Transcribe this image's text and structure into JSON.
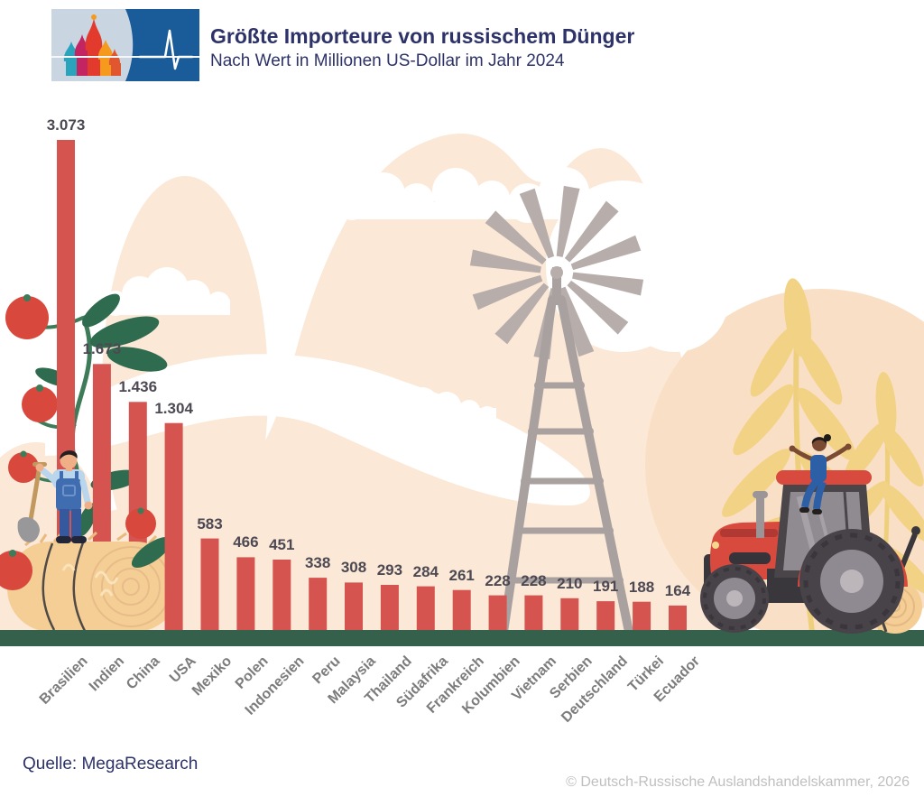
{
  "header": {
    "title": "Größte Importeure von russischem Dünger",
    "subtitle": "Nach Wert in Millionen US-Dollar im Jahr 2024"
  },
  "chart_data": {
    "type": "bar",
    "title": "Größte Importeure von russischem Dünger",
    "subtitle": "Nach Wert in Millionen US-Dollar im Jahr 2024",
    "unit": "Millionen US-Dollar",
    "year": "2024",
    "categories": [
      "Brasilien",
      "Indien",
      "China",
      "USA",
      "Mexiko",
      "Polen",
      "Indonesien",
      "Peru",
      "Malaysia",
      "Thailand",
      "Südafrika",
      "Frankreich",
      "Kolumbien",
      "Vietnam",
      "Serbien",
      "Deutschland",
      "Türkei",
      "Ecuador"
    ],
    "values": [
      3073,
      1673,
      1436,
      1304,
      583,
      466,
      451,
      338,
      308,
      293,
      284,
      261,
      228,
      228,
      210,
      191,
      188,
      164
    ],
    "value_labels": [
      "3.073",
      "1.673",
      "1.436",
      "1.304",
      "583",
      "466",
      "451",
      "338",
      "308",
      "293",
      "284",
      "261",
      "228",
      "228",
      "210",
      "191",
      "188",
      "164"
    ],
    "xlabel": "",
    "ylabel": "",
    "ylim": [
      0,
      3073
    ],
    "grid": false,
    "legend": "none",
    "bar_color": "#D65450",
    "baseline_color": "#35614C"
  },
  "footer": {
    "source": "Quelle: MegaResearch",
    "copyright": "© Deutsch-Russische Auslandshandelskammer, 2026"
  },
  "colors": {
    "accent_red": "#D65450",
    "navy": "#2D3268",
    "value_label": "#4D4953",
    "category_label": "#7C7C7C",
    "ground_green": "#35614C",
    "peach": "#FBE8D6",
    "logo_blue": "#1A5B99"
  }
}
